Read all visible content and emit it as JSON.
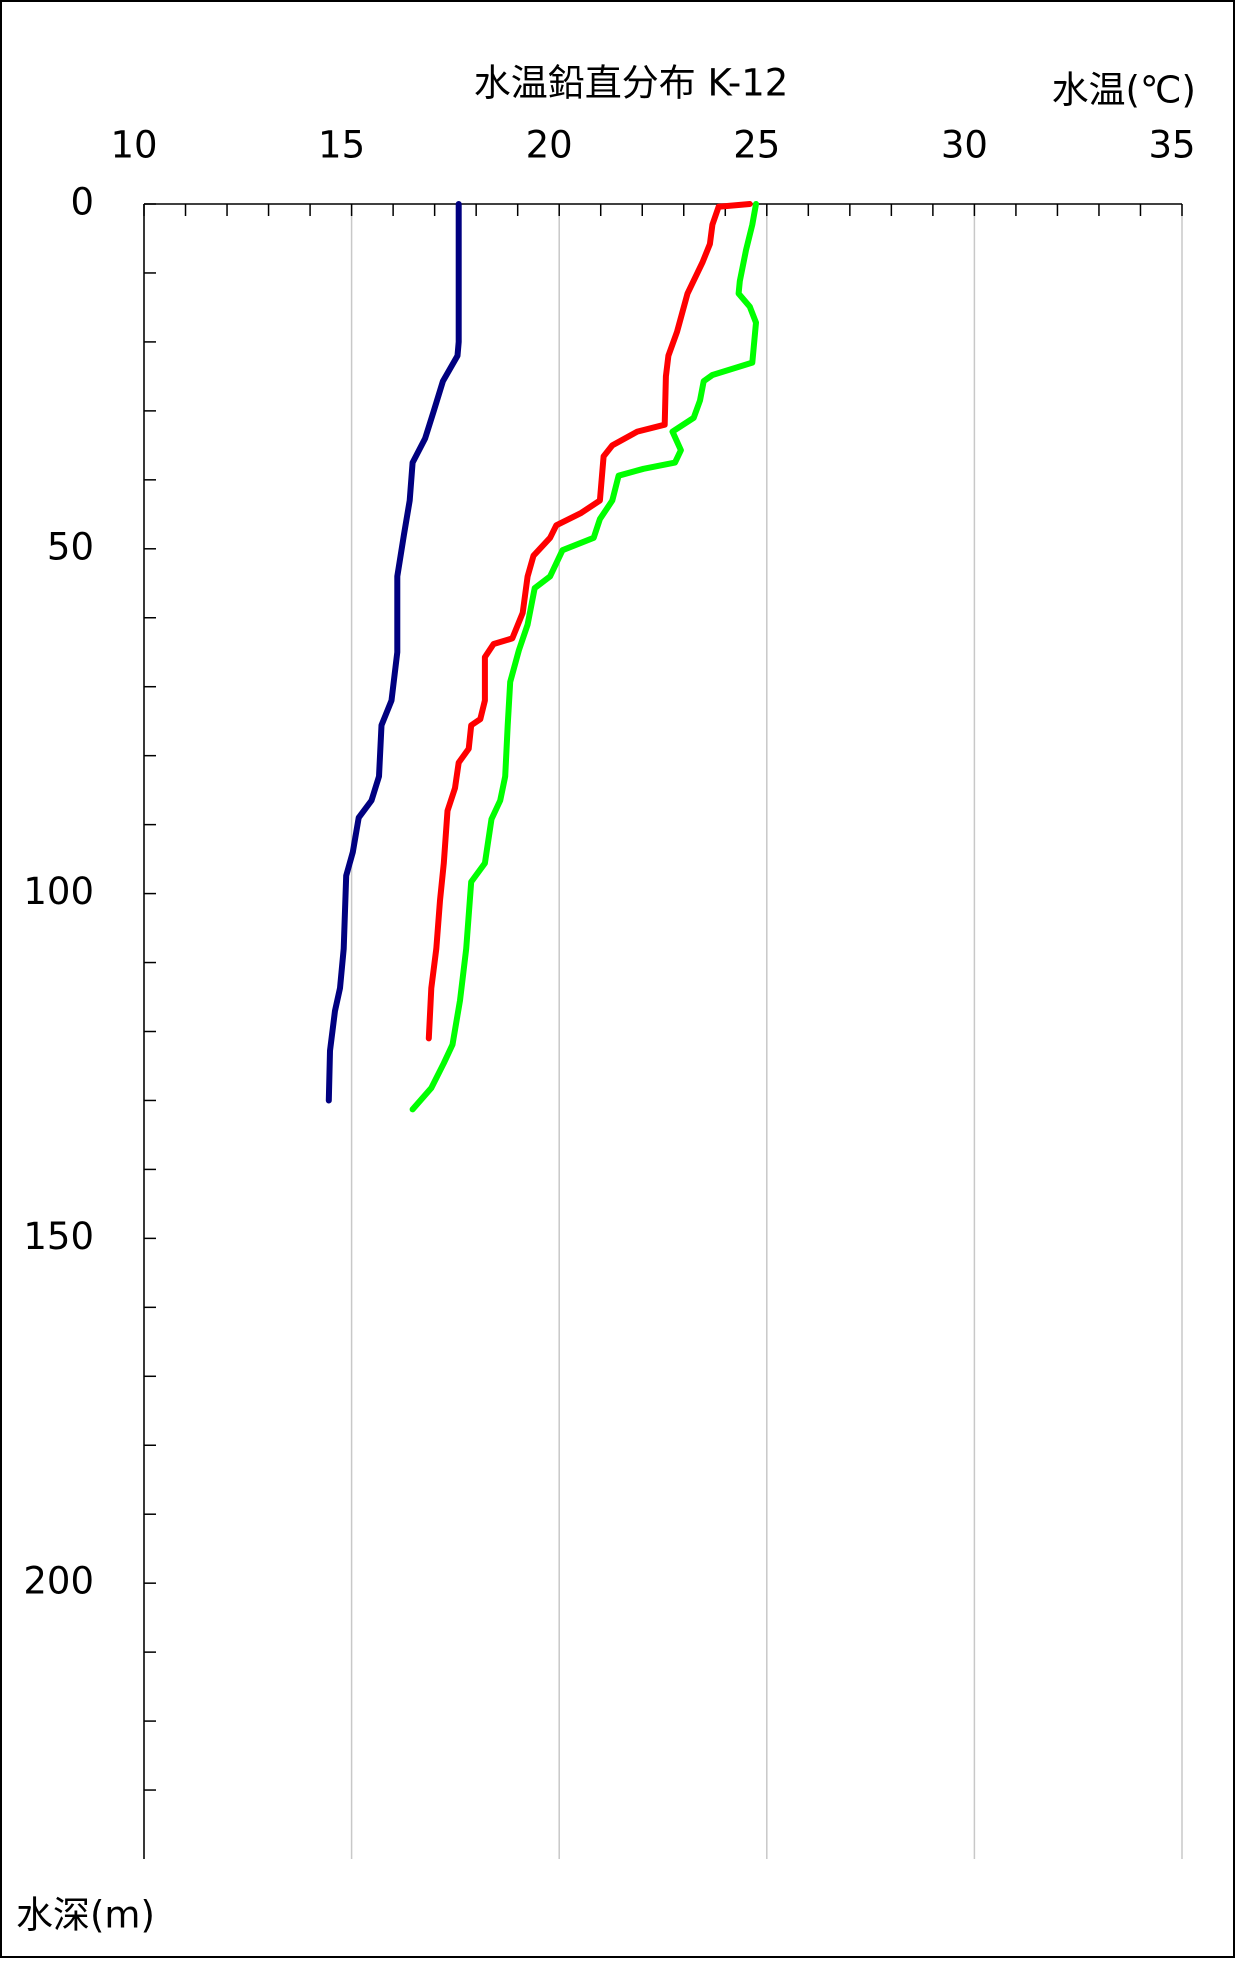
{
  "chart_data": {
    "type": "line",
    "title": "水温鉛直分布 K-12",
    "x_label": "水温(℃)",
    "y_label": "水深(m)",
    "xlim": [
      10,
      35
    ],
    "ylim": [
      0,
      240
    ],
    "xticks": [
      10,
      15,
      20,
      25,
      30,
      35
    ],
    "yticks": [
      0,
      50,
      100,
      150,
      200
    ],
    "minor_xticks": [
      11,
      12,
      13,
      14,
      16,
      17,
      18,
      19,
      21,
      22,
      23,
      24,
      26,
      27,
      28,
      29,
      31,
      32,
      33,
      34
    ],
    "minor_yticks": [
      10,
      20,
      30,
      40,
      60,
      70,
      80,
      90,
      110,
      120,
      130,
      140,
      160,
      170,
      180,
      190,
      210,
      220,
      230
    ],
    "y_inverted": true,
    "x_axis_position": "top",
    "grid": true,
    "series": [
      {
        "color": "#000080",
        "x": [
          17.58,
          17.58,
          17.55,
          17.2,
          16.98,
          16.77,
          16.47,
          16.4,
          16.26,
          16.1,
          16.1,
          15.96,
          15.72,
          15.66,
          15.48,
          15.17,
          15.03,
          14.87,
          14.81,
          14.72,
          14.6,
          14.48,
          14.45
        ],
        "y": [
          0,
          20,
          22,
          25.7,
          30,
          34,
          37.5,
          43,
          48,
          54,
          65,
          72,
          75.6,
          83,
          86.5,
          89,
          94,
          97.4,
          108,
          113.7,
          117,
          122.8,
          130
        ]
      },
      {
        "color": "#ff0000",
        "x": [
          24.59,
          23.84,
          23.69,
          23.63,
          23.45,
          23.09,
          22.84,
          22.63,
          22.57,
          22.54,
          21.88,
          21.28,
          21.07,
          20.98,
          20.53,
          19.93,
          19.78,
          19.38,
          19.24,
          19.12,
          18.87,
          18.42,
          18.21,
          18.21,
          18.1,
          17.88,
          17.82,
          17.58,
          17.49,
          17.31,
          17.22,
          17.13,
          17.04,
          16.92,
          16.86
        ],
        "y": [
          0,
          0.4,
          3,
          5.8,
          8.5,
          13,
          18.5,
          22,
          25,
          32,
          33,
          35,
          36.6,
          43,
          44.8,
          46.6,
          48.4,
          51,
          54,
          59.3,
          63,
          63.8,
          65.7,
          72,
          74.7,
          75.6,
          79,
          81,
          84.7,
          88,
          95.6,
          101,
          108,
          113.7,
          121
        ]
      },
      {
        "color": "#00ff00",
        "x": [
          24.74,
          24.65,
          24.5,
          24.35,
          24.32,
          24.59,
          24.74,
          24.65,
          23.69,
          23.48,
          23.39,
          23.24,
          22.73,
          22.93,
          22.79,
          22.03,
          21.43,
          21.28,
          20.98,
          20.83,
          20.08,
          19.78,
          19.41,
          19.24,
          19.03,
          18.82,
          18.76,
          18.7,
          18.58,
          18.37,
          18.21,
          17.88,
          17.76,
          17.61,
          17.43,
          17.22,
          16.92,
          16.47
        ],
        "y": [
          0,
          3,
          6.7,
          11.2,
          13,
          14.9,
          17.2,
          23,
          24.8,
          25.7,
          28.5,
          31,
          33,
          35.7,
          37.5,
          38.4,
          39.4,
          43,
          45.7,
          48.4,
          50.2,
          54,
          55.7,
          61,
          64.7,
          69.3,
          75.6,
          83,
          86.5,
          89.2,
          95.6,
          98.3,
          108,
          115.5,
          121.9,
          124.6,
          128.2,
          131.3
        ]
      }
    ]
  }
}
